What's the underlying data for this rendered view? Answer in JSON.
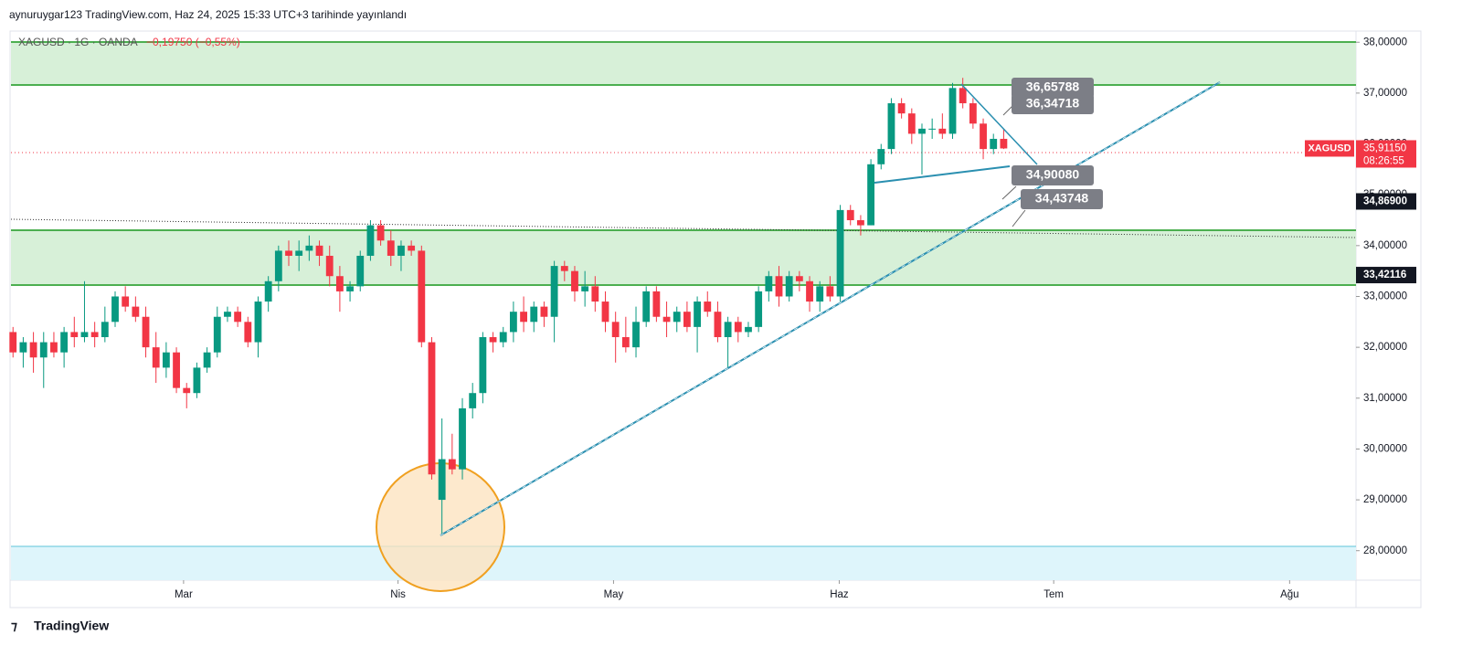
{
  "header": {
    "title": "aynuruygar123 TradingView.com, Haz 24, 2025 15:33 UTC+3 tarihinde yayınlandı",
    "symbol": "XAGUSD · 1G · OANDA",
    "change": "−0,19750 (−0,55%)"
  },
  "chart_data": {
    "type": "candlestick",
    "up_color": "#089981",
    "down_color": "#f23645",
    "candles": [
      [
        32.3,
        32.4,
        31.8,
        31.9
      ],
      [
        31.9,
        32.2,
        31.6,
        32.1
      ],
      [
        32.1,
        32.3,
        31.5,
        31.8
      ],
      [
        31.8,
        32.3,
        31.2,
        32.1
      ],
      [
        32.1,
        32.3,
        31.8,
        31.9
      ],
      [
        31.9,
        32.4,
        31.6,
        32.3
      ],
      [
        32.3,
        32.6,
        32.0,
        32.2
      ],
      [
        32.2,
        33.3,
        32.1,
        32.3
      ],
      [
        32.3,
        32.5,
        32.0,
        32.2
      ],
      [
        32.2,
        32.8,
        32.1,
        32.5
      ],
      [
        32.5,
        33.1,
        32.4,
        33.0
      ],
      [
        33.0,
        33.2,
        32.7,
        32.8
      ],
      [
        32.8,
        33.0,
        32.5,
        32.6
      ],
      [
        32.6,
        32.8,
        31.8,
        32.0
      ],
      [
        32.0,
        32.3,
        31.3,
        31.6
      ],
      [
        31.6,
        32.1,
        31.4,
        31.9
      ],
      [
        31.9,
        32.0,
        31.1,
        31.2
      ],
      [
        31.2,
        31.3,
        30.8,
        31.1
      ],
      [
        31.1,
        31.7,
        31.0,
        31.6
      ],
      [
        31.6,
        32.0,
        31.5,
        31.9
      ],
      [
        31.9,
        32.8,
        31.8,
        32.6
      ],
      [
        32.6,
        32.8,
        32.5,
        32.7
      ],
      [
        32.7,
        32.8,
        32.4,
        32.5
      ],
      [
        32.5,
        32.6,
        32.0,
        32.1
      ],
      [
        32.1,
        33.0,
        31.8,
        32.9
      ],
      [
        32.9,
        33.4,
        32.7,
        33.3
      ],
      [
        33.3,
        34.0,
        33.1,
        33.9
      ],
      [
        33.9,
        34.1,
        33.6,
        33.8
      ],
      [
        33.8,
        34.1,
        33.5,
        33.9
      ],
      [
        33.9,
        34.2,
        33.7,
        34.0
      ],
      [
        34.0,
        34.1,
        33.6,
        33.8
      ],
      [
        33.8,
        34.0,
        33.2,
        33.4
      ],
      [
        33.4,
        33.6,
        32.7,
        33.1
      ],
      [
        33.1,
        33.3,
        32.9,
        33.2
      ],
      [
        33.2,
        33.9,
        33.1,
        33.8
      ],
      [
        33.8,
        34.5,
        33.7,
        34.4
      ],
      [
        34.4,
        34.5,
        34.0,
        34.1
      ],
      [
        34.1,
        34.3,
        33.6,
        33.8
      ],
      [
        33.8,
        34.1,
        33.5,
        34.0
      ],
      [
        34.0,
        34.1,
        33.8,
        33.9
      ],
      [
        33.9,
        34.0,
        32.0,
        32.1
      ],
      [
        32.1,
        32.2,
        29.4,
        29.5
      ],
      [
        29.0,
        30.6,
        28.3,
        29.8
      ],
      [
        29.8,
        30.3,
        29.5,
        29.6
      ],
      [
        29.6,
        31.0,
        29.4,
        30.8
      ],
      [
        30.8,
        31.3,
        30.6,
        31.1
      ],
      [
        31.1,
        32.3,
        30.9,
        32.2
      ],
      [
        32.2,
        32.3,
        31.9,
        32.1
      ],
      [
        32.1,
        32.4,
        32.0,
        32.3
      ],
      [
        32.3,
        32.9,
        32.1,
        32.7
      ],
      [
        32.7,
        33.0,
        32.3,
        32.5
      ],
      [
        32.5,
        32.9,
        32.3,
        32.8
      ],
      [
        32.8,
        32.9,
        32.4,
        32.6
      ],
      [
        32.6,
        33.7,
        32.1,
        33.6
      ],
      [
        33.6,
        33.7,
        33.3,
        33.5
      ],
      [
        33.5,
        33.6,
        32.9,
        33.1
      ],
      [
        33.1,
        33.5,
        32.8,
        33.2
      ],
      [
        33.2,
        33.4,
        32.7,
        32.9
      ],
      [
        32.9,
        33.1,
        32.3,
        32.5
      ],
      [
        32.5,
        32.7,
        31.7,
        32.2
      ],
      [
        32.2,
        32.6,
        31.9,
        32.0
      ],
      [
        32.0,
        32.8,
        31.8,
        32.5
      ],
      [
        32.5,
        33.2,
        32.4,
        33.1
      ],
      [
        33.1,
        33.2,
        32.5,
        32.6
      ],
      [
        32.6,
        32.9,
        32.2,
        32.5
      ],
      [
        32.5,
        32.8,
        32.3,
        32.7
      ],
      [
        32.7,
        32.9,
        32.3,
        32.4
      ],
      [
        32.4,
        33.0,
        31.9,
        32.9
      ],
      [
        32.9,
        33.1,
        32.6,
        32.7
      ],
      [
        32.7,
        32.9,
        32.1,
        32.2
      ],
      [
        32.2,
        32.6,
        31.6,
        32.5
      ],
      [
        32.5,
        32.6,
        32.1,
        32.3
      ],
      [
        32.3,
        32.5,
        32.2,
        32.4
      ],
      [
        32.4,
        33.2,
        32.3,
        33.1
      ],
      [
        33.1,
        33.5,
        32.9,
        33.4
      ],
      [
        33.4,
        33.6,
        32.8,
        33.0
      ],
      [
        33.0,
        33.5,
        32.9,
        33.4
      ],
      [
        33.4,
        33.5,
        33.1,
        33.3
      ],
      [
        33.3,
        33.4,
        32.7,
        32.9
      ],
      [
        32.9,
        33.3,
        32.7,
        33.2
      ],
      [
        33.2,
        33.4,
        32.9,
        33.0
      ],
      [
        33.0,
        34.8,
        32.9,
        34.7
      ],
      [
        34.7,
        34.8,
        34.4,
        34.5
      ],
      [
        34.5,
        34.6,
        34.2,
        34.4
      ],
      [
        34.4,
        35.7,
        34.4,
        35.6
      ],
      [
        35.6,
        36.0,
        35.5,
        35.9
      ],
      [
        35.9,
        36.9,
        35.8,
        36.8
      ],
      [
        36.8,
        36.9,
        36.5,
        36.6
      ],
      [
        36.6,
        36.7,
        36.0,
        36.2
      ],
      [
        36.2,
        36.4,
        35.4,
        36.3
      ],
      [
        36.3,
        36.5,
        36.1,
        36.3
      ],
      [
        36.3,
        36.6,
        36.1,
        36.2
      ],
      [
        36.2,
        37.2,
        36.1,
        37.1
      ],
      [
        37.1,
        37.3,
        36.7,
        36.8
      ],
      [
        36.8,
        36.9,
        36.3,
        36.4
      ],
      [
        36.4,
        36.5,
        35.7,
        35.9
      ],
      [
        35.9,
        36.2,
        35.8,
        36.1
      ],
      [
        36.1,
        36.3,
        35.9,
        35.9115
      ]
    ],
    "xlim": [
      -0.2,
      131.5
    ],
    "xticks": [
      {
        "value": 16.7,
        "label": "Mar"
      },
      {
        "value": 37.7,
        "label": "Nis"
      },
      {
        "value": 58.8,
        "label": "May"
      },
      {
        "value": 80.9,
        "label": "Haz"
      },
      {
        "value": 101.9,
        "label": "Tem"
      },
      {
        "value": 125,
        "label": "Ağu"
      }
    ],
    "ylim": [
      27.42,
      38.22
    ],
    "yticks": [
      {
        "value": 28,
        "label": "28,00000"
      },
      {
        "value": 29,
        "label": "29,00000"
      },
      {
        "value": 30,
        "label": "30,00000"
      },
      {
        "value": 31,
        "label": "31,00000"
      },
      {
        "value": 32,
        "label": "32,00000"
      },
      {
        "value": 33,
        "label": "33,00000"
      },
      {
        "value": 34,
        "label": "34,00000"
      },
      {
        "value": 35,
        "label": "35,00000"
      },
      {
        "value": 36,
        "label": "36,00000"
      },
      {
        "value": 37,
        "label": "37,00000"
      },
      {
        "value": 38,
        "label": "38,00000"
      }
    ],
    "last_price": {
      "symbol": "XAGUSD",
      "value": 35.9115,
      "label": "35,91150",
      "countdown": "08:26:55"
    },
    "price_labels": [
      {
        "value": 34.869,
        "label": "34,86900"
      },
      {
        "value": 33.42116,
        "label": "33,42116"
      }
    ],
    "annotations": [
      "36,65788",
      "36,34718",
      "34,90080",
      "34,43748"
    ]
  },
  "footer": {
    "brand": "TradingView"
  }
}
